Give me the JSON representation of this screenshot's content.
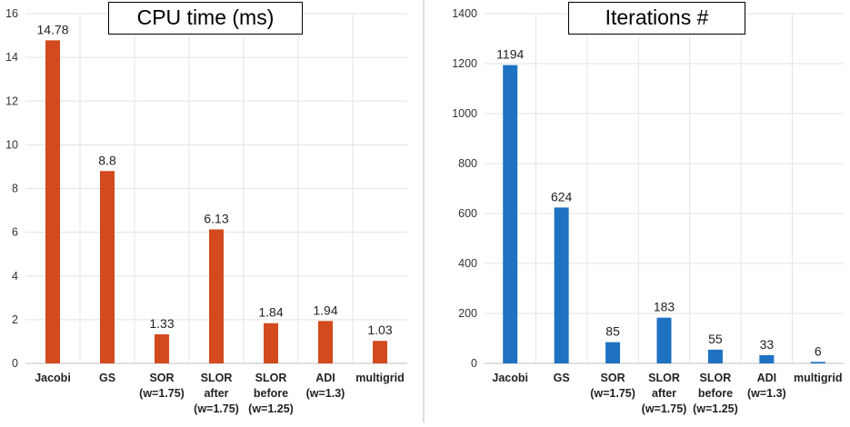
{
  "chart_data": [
    {
      "type": "bar",
      "title": "CPU time (ms)",
      "xlabel": "",
      "ylabel": "",
      "ylim": [
        0,
        16
      ],
      "yticks": [
        0,
        2,
        4,
        6,
        8,
        10,
        12,
        14,
        16
      ],
      "color": "#D24A1E",
      "categories": [
        [
          "Jacobi"
        ],
        [
          "GS"
        ],
        [
          "SOR",
          "(w=1.75)"
        ],
        [
          "SLOR",
          "after",
          "(w=1.75)"
        ],
        [
          "SLOR",
          "before",
          "(w=1.25)"
        ],
        [
          "ADI",
          "(w=1.3)"
        ],
        [
          "multigrid"
        ]
      ],
      "values": [
        14.78,
        8.8,
        1.33,
        6.13,
        1.84,
        1.94,
        1.03
      ],
      "value_labels": [
        "14.78",
        "8.8",
        "1.33",
        "6.13",
        "1.84",
        "1.94",
        "1.03"
      ]
    },
    {
      "type": "bar",
      "title": "Iterations #",
      "xlabel": "",
      "ylabel": "",
      "ylim": [
        0,
        1400
      ],
      "yticks": [
        0,
        200,
        400,
        600,
        800,
        1000,
        1200,
        1400
      ],
      "color": "#1F72C2",
      "categories": [
        [
          "Jacobi"
        ],
        [
          "GS"
        ],
        [
          "SOR",
          "(w=1.75)"
        ],
        [
          "SLOR",
          "after",
          "(w=1.75)"
        ],
        [
          "SLOR",
          "before",
          "(w=1.25)"
        ],
        [
          "ADI",
          "(w=1.3)"
        ],
        [
          "multigrid"
        ]
      ],
      "values": [
        1194,
        624,
        85,
        183,
        55,
        33,
        6
      ],
      "value_labels": [
        "1194",
        "624",
        "85",
        "183",
        "55",
        "33",
        "6"
      ]
    }
  ]
}
